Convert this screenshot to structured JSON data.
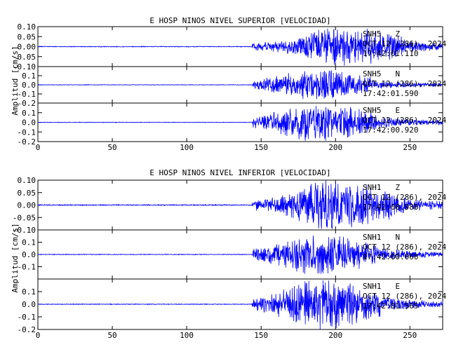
{
  "chart_data": [
    {
      "type": "line",
      "title": "E HOSP NINOS NIVEL SUPERIOR [VELOCIDAD]",
      "ylabel": "Amplitud [cm/s]",
      "xlim": [
        0,
        272
      ],
      "x_ticks": [
        "0",
        "50",
        "100",
        "150",
        "200",
        "250"
      ],
      "line_color": "#0000ff",
      "panels": [
        {
          "station": "SNH5",
          "component": "Z",
          "date": "OCT 12 (286), 2024",
          "time": "17:42:01.110",
          "ylim": [
            -0.1,
            0.1
          ],
          "y_ticks": [
            "0.10",
            "0.05",
            "0.00",
            "-0.05",
            "-0.10"
          ],
          "onset_s": 144,
          "peak_s": 205,
          "peak_amp": 0.098,
          "noise_amp": 0.002
        },
        {
          "station": "SNH5",
          "component": "N",
          "date": "OCT 12 (286), 2024",
          "time": "17:42:01.590",
          "ylim": [
            -0.2,
            0.2
          ],
          "y_ticks": [
            "0.1",
            "0.0",
            "-0.1",
            "-0.2"
          ],
          "onset_s": 144,
          "peak_s": 185,
          "peak_amp": 0.16,
          "noise_amp": 0.003
        },
        {
          "station": "SNH5",
          "component": "E",
          "date": "OCT 12 (286), 2024",
          "time": "17:42:00.920",
          "ylim": [
            -0.2,
            0.2
          ],
          "y_ticks": [
            "0.1",
            "0.0",
            "-0.1",
            "-0.2"
          ],
          "onset_s": 144,
          "peak_s": 187,
          "peak_amp": 0.19,
          "noise_amp": 0.003
        }
      ]
    },
    {
      "type": "line",
      "title": "E HOSP NINOS NIVEL INFERIOR [VELOCIDAD]",
      "ylabel": "Amplitud [cm/s]",
      "xlim": [
        0,
        272
      ],
      "x_ticks": [
        "0",
        "50",
        "100",
        "150",
        "200",
        "250"
      ],
      "line_color": "#0000ff",
      "panels": [
        {
          "station": "SNH1",
          "component": "Z",
          "date": "OCT 12 (286), 2024",
          "time": "17:42:00.980",
          "ylim": [
            -0.1,
            0.1
          ],
          "y_ticks": [
            "0.10",
            "0.05",
            "0.00",
            "-0.05",
            "-0.10"
          ],
          "onset_s": 144,
          "peak_s": 200,
          "peak_amp": 0.1,
          "noise_amp": 0.002
        },
        {
          "station": "SNH1",
          "component": "N",
          "date": "OCT 12 (286), 2024",
          "time": "17:42:00.060",
          "ylim": [
            -0.2,
            0.2
          ],
          "y_ticks": [
            "0.1",
            "0.0",
            "-0.1"
          ],
          "onset_s": 144,
          "peak_s": 188,
          "peak_amp": 0.16,
          "noise_amp": 0.003
        },
        {
          "station": "SNH1",
          "component": "E",
          "date": "OCT 12 (286), 2024",
          "time": "17:42:01.565",
          "ylim": [
            -0.2,
            0.2
          ],
          "y_ticks": [
            "0.1",
            "0.0",
            "-0.1",
            "-0.2"
          ],
          "onset_s": 144,
          "peak_s": 190,
          "peak_amp": 0.19,
          "noise_amp": 0.003
        }
      ]
    }
  ]
}
